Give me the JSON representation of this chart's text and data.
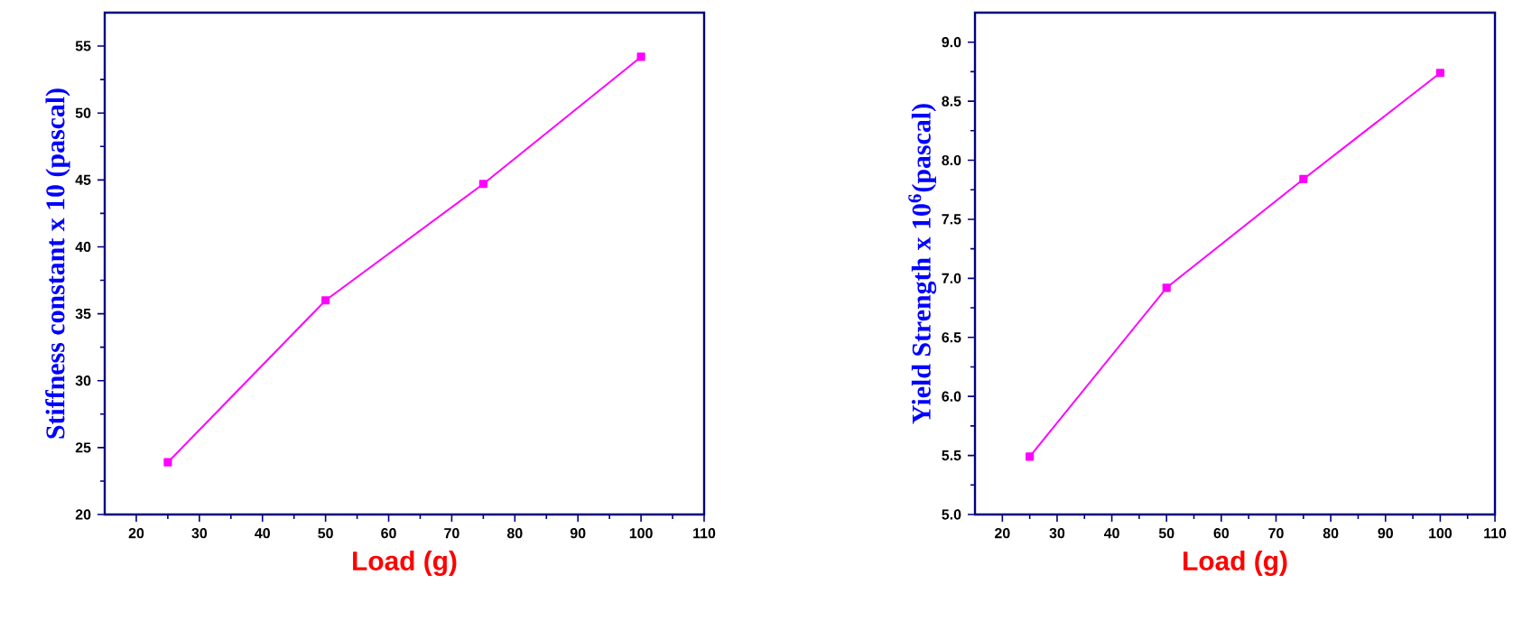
{
  "chart_data": [
    {
      "type": "line",
      "xlabel": "Load (g)",
      "ylabel": "Stiffness constant x 10 (pascal)",
      "x": [
        25,
        50,
        75,
        100
      ],
      "xlim": [
        15,
        110
      ],
      "ylim": [
        20,
        57.5
      ],
      "xticks": [
        20,
        30,
        40,
        50,
        60,
        70,
        80,
        90,
        100,
        110
      ],
      "yticks": [
        20,
        25,
        30,
        35,
        40,
        45,
        50,
        55
      ],
      "marker": "square",
      "line_style": "solid",
      "series": [
        {
          "color": "#ff00ff",
          "values": [
            23.9,
            36.0,
            44.7,
            54.2
          ]
        }
      ]
    },
    {
      "type": "line",
      "xlabel": "Load (g)",
      "ylabel": "Yield Strength x 10$^{6}$(pascal)",
      "x": [
        25,
        50,
        75,
        100
      ],
      "xlim": [
        15,
        110
      ],
      "ylim": [
        5,
        9.25
      ],
      "xticks": [
        20,
        30,
        40,
        50,
        60,
        70,
        80,
        90,
        100,
        110
      ],
      "yticks": [
        {
          "value": 5,
          "label": "5.0"
        },
        {
          "value": 5.5,
          "label": "5.5"
        },
        {
          "value": 6,
          "label": "6.0"
        },
        {
          "value": 6.5,
          "label": "6.5"
        },
        {
          "value": 7,
          "label": "7.0"
        },
        {
          "value": 7.5,
          "label": "7.5"
        },
        {
          "value": 8,
          "label": "8.0"
        },
        {
          "value": 8.5,
          "label": "8.5"
        },
        {
          "value": 9,
          "label": "9.0"
        }
      ],
      "marker": "square",
      "line_style": "solid",
      "series": [
        {
          "color": "#ff00ff",
          "values": [
            5.49,
            6.92,
            7.84,
            8.74
          ]
        }
      ]
    }
  ]
}
